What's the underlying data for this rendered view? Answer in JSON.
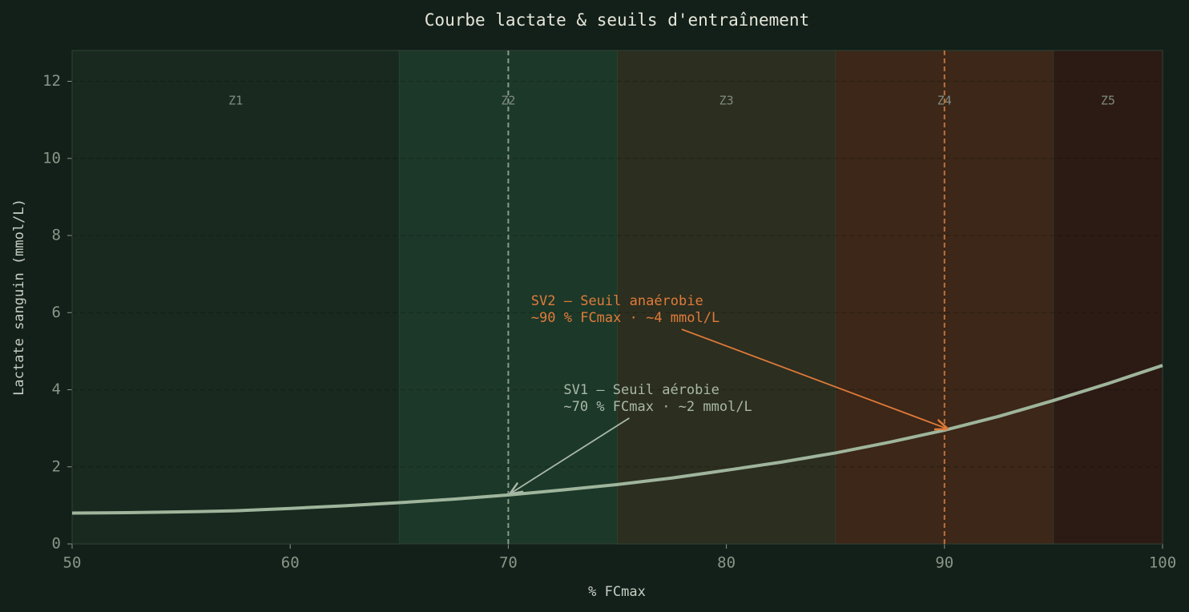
{
  "chart_data": {
    "type": "line",
    "title": "Courbe lactate & seuils d'entraînement",
    "x_label": "% FCmax",
    "y_label": "Lactate sanguin (mmol/L)",
    "x": [
      50,
      52.5,
      55,
      57.5,
      60,
      62.5,
      65,
      67.5,
      70,
      72.5,
      75,
      77.5,
      80,
      82.5,
      85,
      87.5,
      90,
      92.5,
      95,
      97.5,
      100
    ],
    "series": [
      {
        "color": "#9fb59c",
        "values": [
          0.8,
          0.81,
          0.83,
          0.86,
          0.92,
          0.99,
          1.07,
          1.16,
          1.27,
          1.4,
          1.54,
          1.71,
          1.91,
          2.12,
          2.36,
          2.64,
          2.95,
          3.31,
          3.72,
          4.16,
          4.63
        ]
      }
    ],
    "xlim": [
      50,
      100
    ],
    "ylim": [
      0,
      12.8
    ],
    "xticks": [
      50,
      60,
      70,
      80,
      90,
      100
    ],
    "yticks": [
      0,
      2,
      4,
      6,
      8,
      10,
      12
    ],
    "grid": true,
    "zones": [
      {
        "label": "Z1",
        "start": 50,
        "end": 65,
        "color": "#19291f"
      },
      {
        "label": "Z2",
        "start": 65,
        "end": 75,
        "color": "#1c3829"
      },
      {
        "label": "Z3",
        "start": 75,
        "end": 85,
        "color": "#2c2e1f"
      },
      {
        "label": "Z4",
        "start": 85,
        "end": 95,
        "color": "#3c2718"
      },
      {
        "label": "Z5",
        "start": 95,
        "end": 100,
        "color": "#2c1a14"
      }
    ],
    "vlines": [
      {
        "x": 70,
        "color": "#8a9a8c"
      },
      {
        "x": 90,
        "color": "#c0703a"
      }
    ],
    "annotations": [
      {
        "text": [
          "SV1 — Seuil aérobie",
          "~70 % FCmax · ~2 mmol/L"
        ],
        "x": 70,
        "y": 1.27,
        "color": "#a9b8a8"
      },
      {
        "text": [
          "SV2 — Seuil anaérobie",
          "~90 % FCmax · ~4 mmol/L"
        ],
        "x": 90,
        "y": 2.95,
        "color": "#e07b39"
      }
    ]
  }
}
